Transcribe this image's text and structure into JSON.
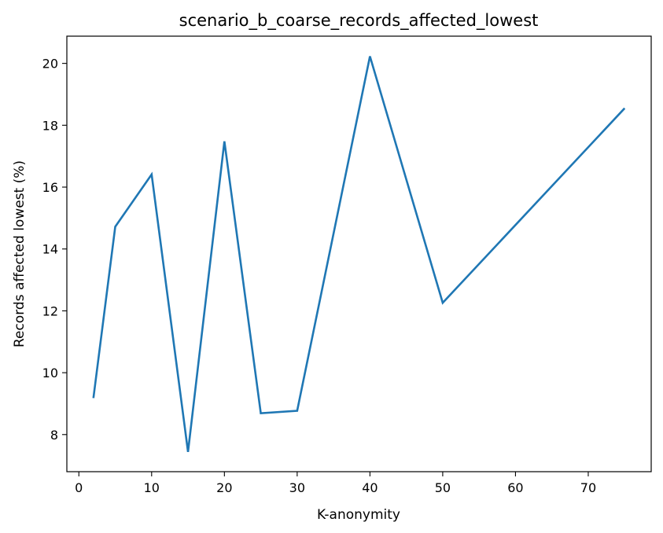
{
  "chart_data": {
    "type": "line",
    "title": "scenario_b_coarse_records_affected_lowest",
    "xlabel": "K-anonymity",
    "ylabel": "Records affected lowest (%)",
    "xlim": [
      -1.65,
      78.65
    ],
    "ylim": [
      6.8,
      20.88
    ],
    "xticks": [
      0,
      10,
      20,
      30,
      40,
      50,
      60,
      70
    ],
    "yticks": [
      8,
      10,
      12,
      14,
      16,
      18,
      20
    ],
    "grid": false,
    "legend": false,
    "series": [
      {
        "color": "#1f77b4",
        "x": [
          2,
          5,
          10,
          15,
          20,
          25,
          30,
          40,
          50,
          75
        ],
        "y": [
          9.18,
          14.72,
          16.41,
          7.44,
          17.48,
          8.69,
          8.77,
          20.23,
          12.26,
          18.55
        ]
      }
    ]
  }
}
